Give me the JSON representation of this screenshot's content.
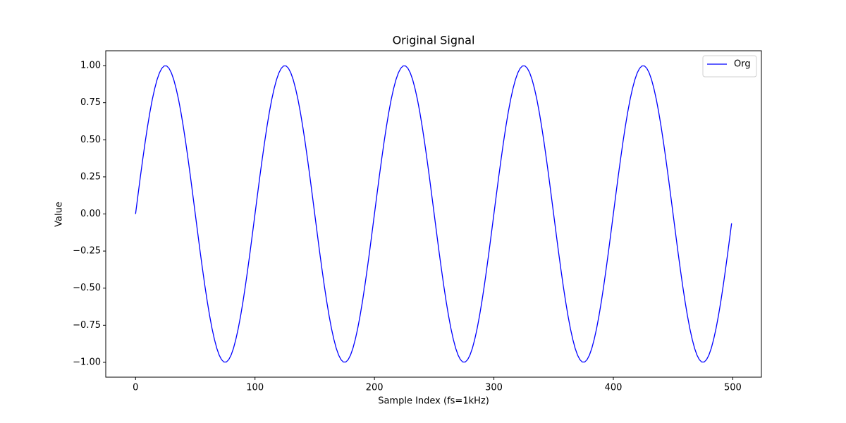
{
  "chart_data": {
    "type": "line",
    "title": "Original Signal",
    "x_label": "Sample Index (fs=1kHz)",
    "y_label": "Value",
    "x": [
      0,
      2,
      4,
      6,
      8,
      10,
      12,
      14,
      16,
      18,
      20,
      22,
      24,
      26,
      28,
      30,
      32,
      34,
      36,
      38,
      40,
      42,
      44,
      46,
      48,
      50,
      52,
      54,
      56,
      58,
      60,
      62,
      64,
      66,
      68,
      70,
      72,
      74,
      76,
      78,
      80,
      82,
      84,
      86,
      88,
      90,
      92,
      94,
      96,
      98,
      100,
      102,
      104,
      106,
      108,
      110,
      112,
      114,
      116,
      118,
      120,
      122,
      124,
      126,
      128,
      130,
      132,
      134,
      136,
      138,
      140,
      142,
      144,
      146,
      148,
      150,
      152,
      154,
      156,
      158,
      160,
      162,
      164,
      166,
      168,
      170,
      172,
      174,
      176,
      178,
      180,
      182,
      184,
      186,
      188,
      190,
      192,
      194,
      196,
      198,
      200,
      202,
      204,
      206,
      208,
      210,
      212,
      214,
      216,
      218,
      220,
      222,
      224,
      226,
      228,
      230,
      232,
      234,
      236,
      238,
      240,
      242,
      244,
      246,
      248,
      250,
      252,
      254,
      256,
      258,
      260,
      262,
      264,
      266,
      268,
      270,
      272,
      274,
      276,
      278,
      280,
      282,
      284,
      286,
      288,
      290,
      292,
      294,
      296,
      298,
      300,
      302,
      304,
      306,
      308,
      310,
      312,
      314,
      316,
      318,
      320,
      322,
      324,
      326,
      328,
      330,
      332,
      334,
      336,
      338,
      340,
      342,
      344,
      346,
      348,
      350,
      352,
      354,
      356,
      358,
      360,
      362,
      364,
      366,
      368,
      370,
      372,
      374,
      376,
      378,
      380,
      382,
      384,
      386,
      388,
      390,
      392,
      394,
      396,
      398,
      400,
      402,
      404,
      406,
      408,
      410,
      412,
      414,
      416,
      418,
      420,
      422,
      424,
      426,
      428,
      430,
      432,
      434,
      436,
      438,
      440,
      442,
      444,
      446,
      448,
      450,
      452,
      454,
      456,
      458,
      460,
      462,
      464,
      466,
      468,
      470,
      472,
      474,
      476,
      478,
      480,
      482,
      484,
      486,
      488,
      490,
      492,
      494,
      496,
      498,
      499
    ],
    "series": [
      {
        "name": "Org",
        "color": "#0000ff",
        "values": [
          0,
          0.125,
          0.249,
          0.368,
          0.482,
          0.588,
          0.685,
          0.771,
          0.844,
          0.905,
          0.951,
          0.982,
          0.998,
          0.998,
          0.982,
          0.951,
          0.905,
          0.844,
          0.771,
          0.685,
          0.588,
          0.482,
          0.368,
          0.249,
          0.125,
          0,
          -0.125,
          -0.249,
          -0.368,
          -0.482,
          -0.588,
          -0.685,
          -0.771,
          -0.844,
          -0.905,
          -0.951,
          -0.982,
          -0.998,
          -0.998,
          -0.982,
          -0.951,
          -0.905,
          -0.844,
          -0.771,
          -0.685,
          -0.588,
          -0.482,
          -0.368,
          -0.249,
          -0.125,
          0,
          0.125,
          0.249,
          0.368,
          0.482,
          0.588,
          0.685,
          0.771,
          0.844,
          0.905,
          0.951,
          0.982,
          0.998,
          0.998,
          0.982,
          0.951,
          0.905,
          0.844,
          0.771,
          0.685,
          0.588,
          0.482,
          0.368,
          0.249,
          0.125,
          0,
          -0.125,
          -0.249,
          -0.368,
          -0.482,
          -0.588,
          -0.685,
          -0.771,
          -0.844,
          -0.905,
          -0.951,
          -0.982,
          -0.998,
          -0.998,
          -0.982,
          -0.951,
          -0.905,
          -0.844,
          -0.771,
          -0.685,
          -0.588,
          -0.482,
          -0.368,
          -0.249,
          -0.125,
          0,
          0.125,
          0.249,
          0.368,
          0.482,
          0.588,
          0.685,
          0.771,
          0.844,
          0.905,
          0.951,
          0.982,
          0.998,
          0.998,
          0.982,
          0.951,
          0.905,
          0.844,
          0.771,
          0.685,
          0.588,
          0.482,
          0.368,
          0.249,
          0.125,
          0,
          -0.125,
          -0.249,
          -0.368,
          -0.482,
          -0.588,
          -0.685,
          -0.771,
          -0.844,
          -0.905,
          -0.951,
          -0.982,
          -0.998,
          -0.998,
          -0.982,
          -0.951,
          -0.905,
          -0.844,
          -0.771,
          -0.685,
          -0.588,
          -0.482,
          -0.368,
          -0.249,
          -0.125,
          0,
          0.125,
          0.249,
          0.368,
          0.482,
          0.588,
          0.685,
          0.771,
          0.844,
          0.905,
          0.951,
          0.982,
          0.998,
          0.998,
          0.982,
          0.951,
          0.905,
          0.844,
          0.771,
          0.685,
          0.588,
          0.482,
          0.368,
          0.249,
          0.125,
          0,
          -0.125,
          -0.249,
          -0.368,
          -0.482,
          -0.588,
          -0.685,
          -0.771,
          -0.844,
          -0.905,
          -0.951,
          -0.982,
          -0.998,
          -0.998,
          -0.982,
          -0.951,
          -0.905,
          -0.844,
          -0.771,
          -0.685,
          -0.588,
          -0.482,
          -0.368,
          -0.249,
          -0.125,
          0,
          0.125,
          0.249,
          0.368,
          0.482,
          0.588,
          0.685,
          0.771,
          0.844,
          0.905,
          0.951,
          0.982,
          0.998,
          0.998,
          0.982,
          0.951,
          0.905,
          0.844,
          0.771,
          0.685,
          0.588,
          0.482,
          0.368,
          0.249,
          0.125,
          0,
          -0.125,
          -0.249,
          -0.368,
          -0.482,
          -0.588,
          -0.685,
          -0.771,
          -0.844,
          -0.905,
          -0.951,
          -0.982,
          -0.998,
          -0.998,
          -0.982,
          -0.951,
          -0.905,
          -0.844,
          -0.771,
          -0.685,
          -0.588,
          -0.482,
          -0.368,
          -0.249,
          -0.125,
          -0.063
        ]
      }
    ],
    "xlim": [
      -24.95,
      523.95
    ],
    "xticks": [
      0,
      100,
      200,
      300,
      400,
      500
    ],
    "ylim": [
      -1.1,
      1.1
    ],
    "yticks": [
      {
        "value": -1,
        "label": "−1.00"
      },
      {
        "value": -0.75,
        "label": "−0.75"
      },
      {
        "value": -0.5,
        "label": "−0.50"
      },
      {
        "value": -0.25,
        "label": "−0.25"
      },
      {
        "value": 0,
        "label": "0.00"
      },
      {
        "value": 0.25,
        "label": "0.25"
      },
      {
        "value": 0.5,
        "label": "0.50"
      },
      {
        "value": 0.75,
        "label": "0.75"
      },
      {
        "value": 1,
        "label": "1.00"
      }
    ],
    "grid": false,
    "legend": "upper right"
  }
}
